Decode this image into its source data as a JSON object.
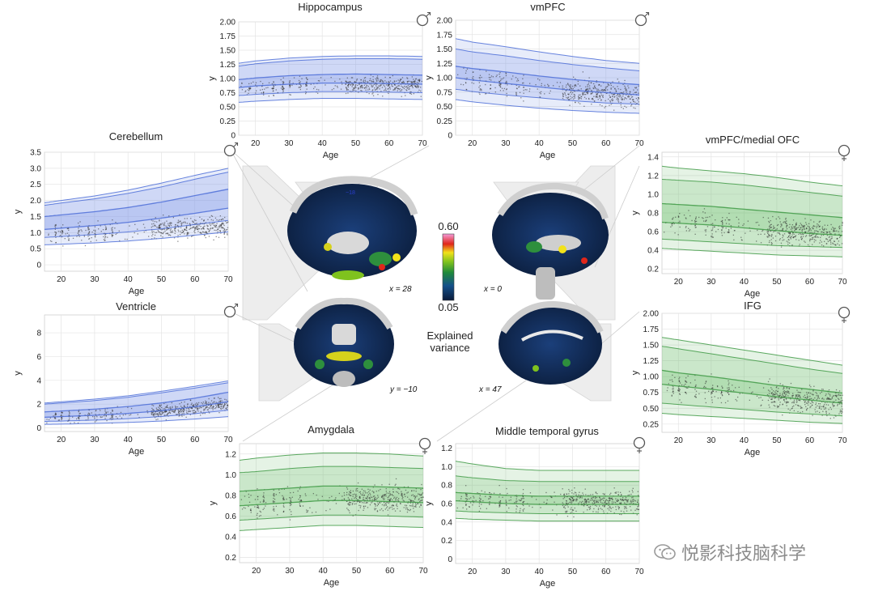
{
  "colors": {
    "male": "#7b93e6",
    "male_dark": "#4d6fd8",
    "female": "#6dbf6d",
    "female_dark": "#3f9a45"
  },
  "center": {
    "colorbar_max": "0.60",
    "colorbar_min": "0.05",
    "label_line1": "Explained",
    "label_line2": "variance",
    "coords": [
      "x = 28",
      "x = 0",
      "y = −10",
      "x = 47"
    ],
    "slice_label": "−18"
  },
  "watermark": "悦影科技脑科学",
  "chart_data": [
    {
      "id": "hippocampus",
      "type": "line",
      "title": "Hippocampus",
      "sex": "male",
      "xlabel": "Age",
      "ylabel": "y",
      "xlim": [
        15,
        70
      ],
      "ylim": [
        0,
        2.0
      ],
      "yticks": [
        "0",
        "0.25",
        "0.50",
        "0.75",
        "1.00",
        "1.25",
        "1.50",
        "1.75",
        "2.00"
      ],
      "xticks": [
        "20",
        "30",
        "40",
        "50",
        "60",
        "70"
      ],
      "grid": true,
      "x": [
        15,
        20,
        30,
        40,
        50,
        60,
        70
      ],
      "centiles": [
        [
          0.58,
          0.6,
          0.63,
          0.65,
          0.65,
          0.64,
          0.63
        ],
        [
          0.7,
          0.72,
          0.75,
          0.77,
          0.77,
          0.76,
          0.75
        ],
        [
          0.84,
          0.87,
          0.9,
          0.92,
          0.92,
          0.91,
          0.9
        ],
        [
          0.98,
          1.01,
          1.05,
          1.07,
          1.08,
          1.07,
          1.06
        ],
        [
          1.22,
          1.26,
          1.31,
          1.34,
          1.35,
          1.35,
          1.34
        ],
        [
          1.27,
          1.31,
          1.36,
          1.39,
          1.4,
          1.4,
          1.39
        ]
      ],
      "scatter_center": [
        0.82,
        0.84,
        0.87,
        0.89,
        0.89,
        0.88,
        0.87
      ],
      "scatter_spread": 0.14
    },
    {
      "id": "vmpfc",
      "type": "line",
      "title": "vmPFC",
      "sex": "male",
      "xlabel": "Age",
      "ylabel": "y",
      "xlim": [
        15,
        70
      ],
      "ylim": [
        0,
        2.0
      ],
      "yticks": [
        "0",
        "0.25",
        "0.50",
        "0.75",
        "1.00",
        "1.25",
        "1.50",
        "1.75",
        "2.00"
      ],
      "xticks": [
        "20",
        "30",
        "40",
        "50",
        "60",
        "70"
      ],
      "grid": true,
      "x": [
        15,
        20,
        30,
        40,
        50,
        60,
        70
      ],
      "centiles": [
        [
          0.62,
          0.58,
          0.52,
          0.47,
          0.43,
          0.4,
          0.38
        ],
        [
          0.8,
          0.76,
          0.7,
          0.65,
          0.6,
          0.56,
          0.54
        ],
        [
          1.0,
          0.96,
          0.9,
          0.84,
          0.78,
          0.74,
          0.7
        ],
        [
          1.2,
          1.16,
          1.1,
          1.03,
          0.97,
          0.92,
          0.88
        ],
        [
          1.5,
          1.45,
          1.38,
          1.3,
          1.23,
          1.17,
          1.12
        ],
        [
          1.68,
          1.62,
          1.54,
          1.45,
          1.37,
          1.3,
          1.25
        ]
      ],
      "scatter_center": [
        0.98,
        0.94,
        0.88,
        0.82,
        0.76,
        0.72,
        0.68
      ],
      "scatter_spread": 0.22
    },
    {
      "id": "cerebellum",
      "type": "line",
      "title": "Cerebellum",
      "sex": "male",
      "xlabel": "Age",
      "ylabel": "y",
      "xlim": [
        15,
        70
      ],
      "ylim": [
        -0.2,
        3.5
      ],
      "yticks": [
        "0",
        "0.5",
        "1.0",
        "1.5",
        "2.0",
        "2.5",
        "3.0",
        "3.5"
      ],
      "xticks": [
        "20",
        "30",
        "40",
        "50",
        "60",
        "70"
      ],
      "grid": true,
      "x": [
        15,
        20,
        30,
        40,
        50,
        60,
        70
      ],
      "centiles": [
        [
          0.62,
          0.64,
          0.68,
          0.74,
          0.82,
          0.92,
          1.02
        ],
        [
          0.85,
          0.88,
          0.94,
          1.02,
          1.12,
          1.25,
          1.38
        ],
        [
          1.1,
          1.14,
          1.22,
          1.32,
          1.45,
          1.6,
          1.76
        ],
        [
          1.5,
          1.55,
          1.65,
          1.78,
          1.95,
          2.15,
          2.35
        ],
        [
          1.85,
          1.92,
          2.05,
          2.22,
          2.42,
          2.66,
          2.88
        ],
        [
          1.93,
          2.0,
          2.14,
          2.32,
          2.54,
          2.78,
          3.0
        ]
      ],
      "scatter_center": [
        0.95,
        0.98,
        1.02,
        1.08,
        1.12,
        1.16,
        1.2
      ],
      "scatter_spread": 0.3
    },
    {
      "id": "ventricle",
      "type": "line",
      "title": "Ventricle",
      "sex": "male",
      "xlabel": "Age",
      "ylabel": "y",
      "xlim": [
        15,
        70
      ],
      "ylim": [
        -0.3,
        9.5
      ],
      "yticks": [
        "0",
        "2",
        "4",
        "6",
        "8"
      ],
      "xticks": [
        "20",
        "30",
        "40",
        "50",
        "60",
        "70"
      ],
      "grid": true,
      "x": [
        15,
        20,
        30,
        40,
        50,
        60,
        70
      ],
      "centiles": [
        [
          0.3,
          0.32,
          0.38,
          0.46,
          0.58,
          0.75,
          0.95
        ],
        [
          0.55,
          0.58,
          0.66,
          0.78,
          0.96,
          1.2,
          1.5
        ],
        [
          0.9,
          0.95,
          1.06,
          1.22,
          1.45,
          1.78,
          2.2
        ],
        [
          1.35,
          1.42,
          1.58,
          1.8,
          2.1,
          2.5,
          3.0
        ],
        [
          2.0,
          2.1,
          2.3,
          2.58,
          2.95,
          3.35,
          3.8
        ],
        [
          2.1,
          2.2,
          2.42,
          2.7,
          3.08,
          3.5,
          3.95
        ]
      ],
      "scatter_center": [
        0.9,
        0.95,
        1.05,
        1.2,
        1.4,
        1.7,
        2.0
      ],
      "scatter_spread": 0.55
    },
    {
      "id": "vmpfc-medial-ofc",
      "type": "line",
      "title": "vmPFC/medial OFC",
      "sex": "female",
      "xlabel": "Age",
      "ylabel": "y",
      "xlim": [
        15,
        70
      ],
      "ylim": [
        0.15,
        1.45
      ],
      "yticks": [
        "0.2",
        "0.4",
        "0.6",
        "0.8",
        "1.0",
        "1.2",
        "1.4"
      ],
      "xticks": [
        "20",
        "30",
        "40",
        "50",
        "60",
        "70"
      ],
      "grid": true,
      "x": [
        15,
        20,
        30,
        40,
        50,
        60,
        70
      ],
      "centiles": [
        [
          0.42,
          0.41,
          0.39,
          0.37,
          0.35,
          0.34,
          0.33
        ],
        [
          0.52,
          0.51,
          0.49,
          0.47,
          0.45,
          0.44,
          0.43
        ],
        [
          0.7,
          0.69,
          0.67,
          0.64,
          0.61,
          0.58,
          0.56
        ],
        [
          0.9,
          0.89,
          0.87,
          0.84,
          0.81,
          0.78,
          0.75
        ],
        [
          1.16,
          1.15,
          1.13,
          1.1,
          1.06,
          1.02,
          0.98
        ],
        [
          1.3,
          1.28,
          1.25,
          1.22,
          1.18,
          1.13,
          1.09
        ]
      ],
      "scatter_center": [
        0.7,
        0.69,
        0.67,
        0.64,
        0.61,
        0.58,
        0.56
      ],
      "scatter_spread": 0.14
    },
    {
      "id": "ifg",
      "type": "line",
      "title": "IFG",
      "sex": "female",
      "xlabel": "Age",
      "ylabel": "y",
      "xlim": [
        15,
        70
      ],
      "ylim": [
        0.12,
        2.0
      ],
      "yticks": [
        "0.25",
        "0.50",
        "0.75",
        "1.00",
        "1.25",
        "1.50",
        "1.75",
        "2.00"
      ],
      "xticks": [
        "20",
        "30",
        "40",
        "50",
        "60",
        "70"
      ],
      "grid": true,
      "x": [
        15,
        20,
        30,
        40,
        50,
        60,
        70
      ],
      "centiles": [
        [
          0.42,
          0.4,
          0.37,
          0.34,
          0.31,
          0.28,
          0.26
        ],
        [
          0.58,
          0.56,
          0.52,
          0.48,
          0.44,
          0.41,
          0.38
        ],
        [
          0.88,
          0.85,
          0.8,
          0.74,
          0.68,
          0.63,
          0.58
        ],
        [
          1.1,
          1.06,
          1.0,
          0.93,
          0.86,
          0.8,
          0.74
        ],
        [
          1.48,
          1.44,
          1.36,
          1.28,
          1.2,
          1.12,
          1.05
        ],
        [
          1.62,
          1.58,
          1.5,
          1.42,
          1.34,
          1.26,
          1.18
        ]
      ],
      "scatter_center": [
        0.88,
        0.85,
        0.8,
        0.74,
        0.68,
        0.63,
        0.58
      ],
      "scatter_spread": 0.2
    },
    {
      "id": "amygdala",
      "type": "line",
      "title": "Amygdala",
      "sex": "female",
      "xlabel": "Age",
      "ylabel": "y",
      "xlim": [
        15,
        70
      ],
      "ylim": [
        0.15,
        1.3
      ],
      "yticks": [
        "0.2",
        "0.4",
        "0.6",
        "0.8",
        "1.0",
        "1.2"
      ],
      "xticks": [
        "20",
        "30",
        "40",
        "50",
        "60",
        "70"
      ],
      "grid": true,
      "x": [
        15,
        20,
        30,
        40,
        50,
        60,
        70
      ],
      "centiles": [
        [
          0.46,
          0.47,
          0.49,
          0.51,
          0.51,
          0.5,
          0.49
        ],
        [
          0.56,
          0.57,
          0.59,
          0.61,
          0.61,
          0.6,
          0.59
        ],
        [
          0.7,
          0.71,
          0.73,
          0.75,
          0.75,
          0.74,
          0.73
        ],
        [
          0.84,
          0.85,
          0.87,
          0.89,
          0.89,
          0.88,
          0.87
        ],
        [
          1.02,
          1.03,
          1.06,
          1.08,
          1.08,
          1.07,
          1.06
        ],
        [
          1.14,
          1.16,
          1.19,
          1.21,
          1.21,
          1.2,
          1.18
        ]
      ],
      "scatter_center": [
        0.72,
        0.73,
        0.75,
        0.77,
        0.77,
        0.76,
        0.75
      ],
      "scatter_spread": 0.13
    },
    {
      "id": "middle-temporal-gyrus",
      "type": "line",
      "title": "Middle temporal gyrus",
      "sex": "female",
      "xlabel": "Age",
      "ylabel": "y",
      "xlim": [
        15,
        70
      ],
      "ylim": [
        -0.05,
        1.25
      ],
      "yticks": [
        "0",
        "0.2",
        "0.4",
        "0.6",
        "0.8",
        "1.0",
        "1.2"
      ],
      "xticks": [
        "20",
        "30",
        "40",
        "50",
        "60",
        "70"
      ],
      "grid": true,
      "x": [
        15,
        20,
        30,
        40,
        50,
        60,
        70
      ],
      "centiles": [
        [
          0.44,
          0.43,
          0.42,
          0.41,
          0.41,
          0.41,
          0.41
        ],
        [
          0.52,
          0.51,
          0.5,
          0.49,
          0.49,
          0.49,
          0.49
        ],
        [
          0.63,
          0.62,
          0.6,
          0.59,
          0.59,
          0.59,
          0.59
        ],
        [
          0.72,
          0.71,
          0.69,
          0.68,
          0.68,
          0.68,
          0.68
        ],
        [
          0.9,
          0.88,
          0.85,
          0.84,
          0.84,
          0.84,
          0.84
        ],
        [
          1.06,
          1.03,
          0.98,
          0.96,
          0.96,
          0.96,
          0.96
        ]
      ],
      "scatter_center": [
        0.66,
        0.65,
        0.63,
        0.62,
        0.62,
        0.62,
        0.62
      ],
      "scatter_spread": 0.12
    }
  ]
}
